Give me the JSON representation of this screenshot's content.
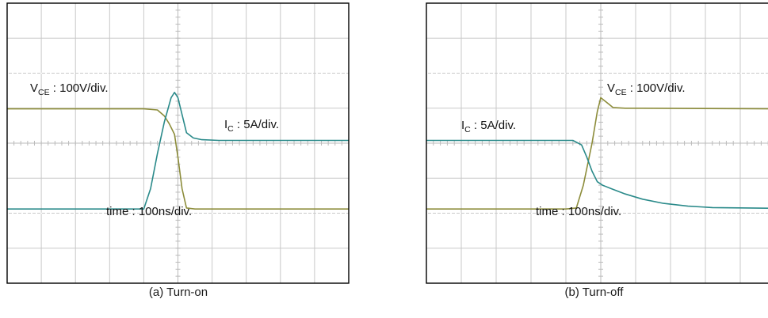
{
  "chart_data": [
    {
      "type": "line",
      "title": "(a) Turn-on",
      "xlabel": "time : 100ns/div.",
      "grid": true,
      "divisions": {
        "x": 10,
        "y": 8
      },
      "xlim": [
        0,
        10
      ],
      "ylim": [
        -4,
        4
      ],
      "annotations": {
        "vce_main": "V",
        "vce_sub": "CE",
        "vce_rest": " : 100V/div.",
        "ic_main": "I",
        "ic_sub": "C",
        "ic_rest": " : 5A/div.",
        "time": "time : 100ns/div."
      },
      "series": [
        {
          "name": "V_CE : 100V/div.",
          "color": "#8c8c3a",
          "x": [
            0,
            4.0,
            4.4,
            4.6,
            4.75,
            4.9,
            5.0,
            5.12,
            5.25,
            5.5,
            6.0,
            10
          ],
          "y": [
            0.98,
            0.98,
            0.95,
            0.78,
            0.55,
            0.25,
            -0.4,
            -1.3,
            -1.85,
            -1.88,
            -1.88,
            -1.88
          ]
        },
        {
          "name": "I_C : 5A/div.",
          "color": "#2a8a8a",
          "x": [
            0,
            4.0,
            4.2,
            4.4,
            4.6,
            4.8,
            4.9,
            5.0,
            5.1,
            5.25,
            5.45,
            5.7,
            6.2,
            10
          ],
          "y": [
            -1.88,
            -1.88,
            -1.3,
            -0.3,
            0.6,
            1.3,
            1.45,
            1.3,
            0.9,
            0.3,
            0.15,
            0.1,
            0.08,
            0.08
          ]
        }
      ]
    },
    {
      "type": "line",
      "title": "(b) Turn-off",
      "xlabel": "time : 100ns/div.",
      "grid": true,
      "divisions": {
        "x": 10,
        "y": 8
      },
      "xlim": [
        0,
        10
      ],
      "ylim": [
        -4,
        4
      ],
      "annotations": {
        "vce_main": "V",
        "vce_sub": "CE",
        "vce_rest": " : 100V/div.",
        "ic_main": "I",
        "ic_sub": "C",
        "ic_rest": " : 5A/div.",
        "time": "time : 100ns/div."
      },
      "series": [
        {
          "name": "V_CE : 100V/div.",
          "color": "#8c8c3a",
          "x": [
            0,
            4.0,
            4.3,
            4.5,
            4.75,
            4.9,
            5.0,
            5.15,
            5.35,
            5.7,
            6.2,
            10
          ],
          "y": [
            -1.88,
            -1.88,
            -1.85,
            -1.2,
            0.0,
            0.9,
            1.3,
            1.18,
            1.02,
            1.0,
            1.0,
            0.98
          ]
        },
        {
          "name": "I_C : 5A/div.",
          "color": "#2a8a8a",
          "x": [
            0,
            4.2,
            4.45,
            4.6,
            4.75,
            4.9,
            5.05,
            5.3,
            5.7,
            6.2,
            6.8,
            7.5,
            8.2,
            10
          ],
          "y": [
            0.08,
            0.08,
            -0.05,
            -0.4,
            -0.8,
            -1.1,
            -1.2,
            -1.3,
            -1.45,
            -1.6,
            -1.72,
            -1.8,
            -1.84,
            -1.86
          ]
        }
      ]
    }
  ],
  "captions": {
    "a": "(a) Turn-on",
    "b": "(b) Turn-off"
  }
}
